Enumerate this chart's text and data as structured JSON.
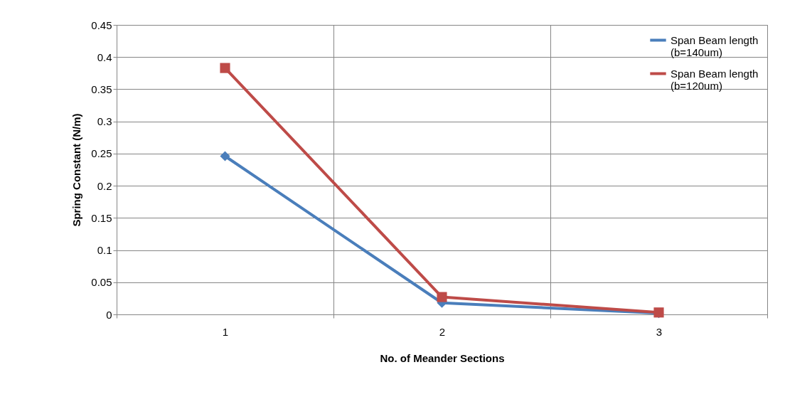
{
  "chart_data": {
    "type": "line",
    "xlabel": "No. of  Meander Sections",
    "ylabel": "Spring Constant (N/m)",
    "categories": [
      "1",
      "2",
      "3"
    ],
    "series": [
      {
        "name": "Span Beam length (b=140um)",
        "color": "#4a7ebb",
        "marker": "diamond",
        "values": [
          0.246,
          0.018,
          0.002
        ]
      },
      {
        "name": "Span Beam  length (b=120um)",
        "color": "#be4b48",
        "marker": "square",
        "values": [
          0.383,
          0.027,
          0.003
        ]
      }
    ],
    "ylim": [
      0,
      0.45
    ],
    "yticks": [
      0,
      0.05,
      0.1,
      0.15,
      0.2,
      0.25,
      0.3,
      0.35,
      0.4,
      0.45
    ],
    "grid": true,
    "legend": "top right"
  }
}
